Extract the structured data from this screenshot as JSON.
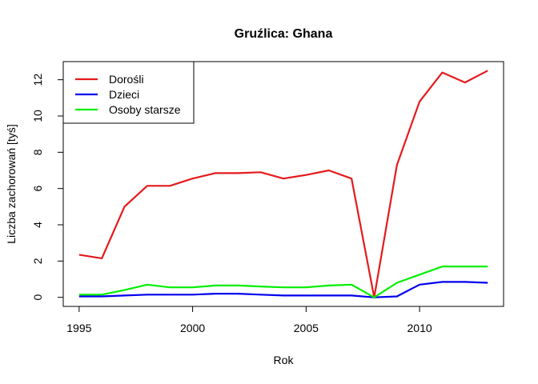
{
  "chart_data": {
    "type": "line",
    "title": "Gruźlica: Ghana",
    "xlabel": "Rok",
    "ylabel": "Liczba zachorowań [tyś]",
    "x": [
      1995,
      1996,
      1997,
      1998,
      1999,
      2000,
      2001,
      2002,
      2003,
      2004,
      2005,
      2006,
      2007,
      2008,
      2009,
      2010,
      2011,
      2012,
      2013
    ],
    "series": [
      {
        "name": "Dorośli",
        "color": "#E41A1C",
        "values": [
          2.35,
          2.15,
          5.0,
          6.15,
          6.15,
          6.55,
          6.85,
          6.85,
          6.9,
          6.55,
          6.75,
          7.0,
          6.55,
          0.0,
          7.3,
          10.8,
          12.4,
          11.85,
          12.5
        ]
      },
      {
        "name": "Dzieci",
        "color": "#0000EE",
        "values": [
          0.05,
          0.05,
          0.1,
          0.15,
          0.15,
          0.15,
          0.2,
          0.2,
          0.15,
          0.1,
          0.1,
          0.1,
          0.1,
          0.0,
          0.05,
          0.7,
          0.85,
          0.85,
          0.8
        ]
      },
      {
        "name": "Osoby starsze",
        "color": "#00EE00",
        "values": [
          0.15,
          0.15,
          0.4,
          0.7,
          0.55,
          0.55,
          0.65,
          0.65,
          0.6,
          0.55,
          0.55,
          0.65,
          0.7,
          0.0,
          0.8,
          1.25,
          1.7,
          1.7,
          1.7
        ]
      }
    ],
    "xticks": [
      1995,
      2000,
      2005,
      2010
    ],
    "yticks": [
      0,
      2,
      4,
      6,
      8,
      10,
      12
    ],
    "xlim": [
      1994.3,
      2013.7
    ],
    "ylim": [
      -0.5,
      13.0
    ],
    "legend_position": "top-left",
    "grid": false
  }
}
